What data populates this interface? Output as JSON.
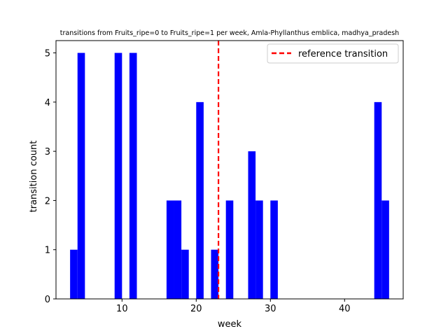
{
  "chart_data": {
    "type": "bar",
    "title": "transitions from Fruits_ripe=0 to Fruits_ripe=1 per week, Amla-Phyllanthus emblica, madhya_pradesh",
    "xlabel": "week",
    "ylabel": "transition count",
    "xlim": [
      1.1,
      47.9
    ],
    "ylim": [
      0,
      5.25
    ],
    "xticks": [
      10,
      20,
      30,
      40
    ],
    "yticks": [
      0,
      1,
      2,
      3,
      4,
      5
    ],
    "bar_color": "#0000ff",
    "bars": [
      {
        "week": 4,
        "count": 1
      },
      {
        "week": 5,
        "count": 5
      },
      {
        "week": 10,
        "count": 5
      },
      {
        "week": 12,
        "count": 5
      },
      {
        "week": 17,
        "count": 2
      },
      {
        "week": 18,
        "count": 2
      },
      {
        "week": 19,
        "count": 1
      },
      {
        "week": 21,
        "count": 4
      },
      {
        "week": 23,
        "count": 1
      },
      {
        "week": 25,
        "count": 2
      },
      {
        "week": 28,
        "count": 3
      },
      {
        "week": 29,
        "count": 2
      },
      {
        "week": 31,
        "count": 2
      },
      {
        "week": 45,
        "count": 4
      },
      {
        "week": 46,
        "count": 2
      }
    ],
    "reference_line": {
      "x": 23,
      "label": "reference transition",
      "color": "#ff0000",
      "style": "dashed"
    },
    "legend_position": "top-right",
    "grid": false
  }
}
